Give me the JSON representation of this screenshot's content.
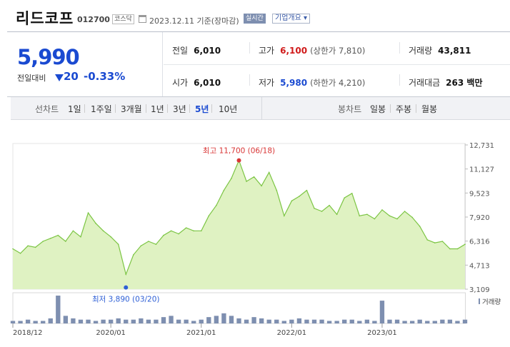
{
  "header": {
    "name": "리드코프",
    "code": "012700",
    "market": "코스닥",
    "date": "2023.12.11 기준(장마감)",
    "realtime": "실시간",
    "company_info": "기업개요"
  },
  "quote": {
    "price": "5,990",
    "change_label": "전일대비",
    "change": "20",
    "change_pct": "-0.33%",
    "direction": "down",
    "prev_close_label": "전일",
    "prev_close": "6,010",
    "open_label": "시가",
    "open": "6,010",
    "high_label": "고가",
    "high": "6,100",
    "upper_limit": "(상한가 7,810)",
    "low_label": "저가",
    "low": "5,980",
    "lower_limit": "(하한가 4,210)",
    "volume_label": "거래량",
    "volume": "43,811",
    "amount_label": "거래대금",
    "amount": "263 백만"
  },
  "tabs": {
    "line_label": "선차트",
    "periods": [
      "1일",
      "1주일",
      "3개월",
      "1년",
      "3년",
      "5년",
      "10년"
    ],
    "selected": "5년",
    "candle_label": "봉차트",
    "candles": [
      "일봉",
      "주봉",
      "월봉"
    ]
  },
  "colors": {
    "price_down": "#1a4ad1",
    "price_up": "#d01a1a",
    "area_fill": "#dff2c2",
    "line": "#7cc544",
    "volume": "#7e8fb0"
  },
  "chart_data": {
    "type": "area",
    "x_tick_labels": [
      "2018/12",
      "2020/01",
      "2021/01",
      "2022/01",
      "2023/01"
    ],
    "y_tick_labels": [
      "12,731",
      "11,127",
      "9,523",
      "7,920",
      "6,316",
      "4,713",
      "3,109"
    ],
    "ylim": [
      3109,
      12731
    ],
    "volume_label": "거래량",
    "max_label": "최고 11,700 (06/18)",
    "min_label": "최저 3,890 (03/20)",
    "max": {
      "date": "2021/06",
      "value": 11700
    },
    "min": {
      "date": "2020/03",
      "value": 3890
    },
    "series": [
      {
        "x": [
          "2018/12",
          "2019/01",
          "2019/02",
          "2019/03",
          "2019/04",
          "2019/05",
          "2019/06",
          "2019/07",
          "2019/08",
          "2019/09",
          "2019/10",
          "2019/11",
          "2019/12",
          "2020/01",
          "2020/02",
          "2020/03",
          "2020/04",
          "2020/05",
          "2020/06",
          "2020/07",
          "2020/08",
          "2020/09",
          "2020/10",
          "2020/11",
          "2020/12",
          "2021/01",
          "2021/02",
          "2021/03",
          "2021/04",
          "2021/05",
          "2021/06",
          "2021/07",
          "2021/08",
          "2021/09",
          "2021/10",
          "2021/11",
          "2021/12",
          "2022/01",
          "2022/02",
          "2022/03",
          "2022/04",
          "2022/05",
          "2022/06",
          "2022/07",
          "2022/08",
          "2022/09",
          "2022/10",
          "2022/11",
          "2022/12",
          "2023/01",
          "2023/02",
          "2023/03",
          "2023/04",
          "2023/05",
          "2023/06",
          "2023/07",
          "2023/08",
          "2023/09",
          "2023/10",
          "2023/11",
          "2023/12"
        ],
        "values": [
          5800,
          5500,
          6000,
          5900,
          6300,
          6500,
          6700,
          6300,
          7000,
          6600,
          8200,
          7500,
          7000,
          6600,
          6100,
          4100,
          5400,
          6000,
          6300,
          6100,
          6700,
          7000,
          6800,
          7200,
          7000,
          7000,
          8000,
          8700,
          9700,
          10500,
          11700,
          10300,
          10600,
          10000,
          10900,
          9700,
          8000,
          9000,
          9300,
          9700,
          8500,
          8300,
          8700,
          8100,
          9200,
          9500,
          8000,
          8100,
          7800,
          8400,
          8000,
          7800,
          8300,
          7900,
          7300,
          6400,
          6200,
          6300,
          5800,
          5800,
          6100
        ]
      }
    ],
    "volume": [
      2,
      2,
      3,
      2,
      2,
      4,
      22,
      6,
      4,
      3,
      3,
      2,
      3,
      3,
      4,
      3,
      3,
      4,
      3,
      3,
      5,
      6,
      3,
      3,
      2,
      3,
      5,
      6,
      8,
      6,
      4,
      3,
      5,
      4,
      3,
      3,
      2,
      3,
      4,
      3,
      3,
      3,
      2,
      2,
      3,
      3,
      2,
      3,
      2,
      18,
      3,
      3,
      2,
      2,
      3,
      2,
      2,
      3,
      3,
      2,
      3
    ]
  }
}
